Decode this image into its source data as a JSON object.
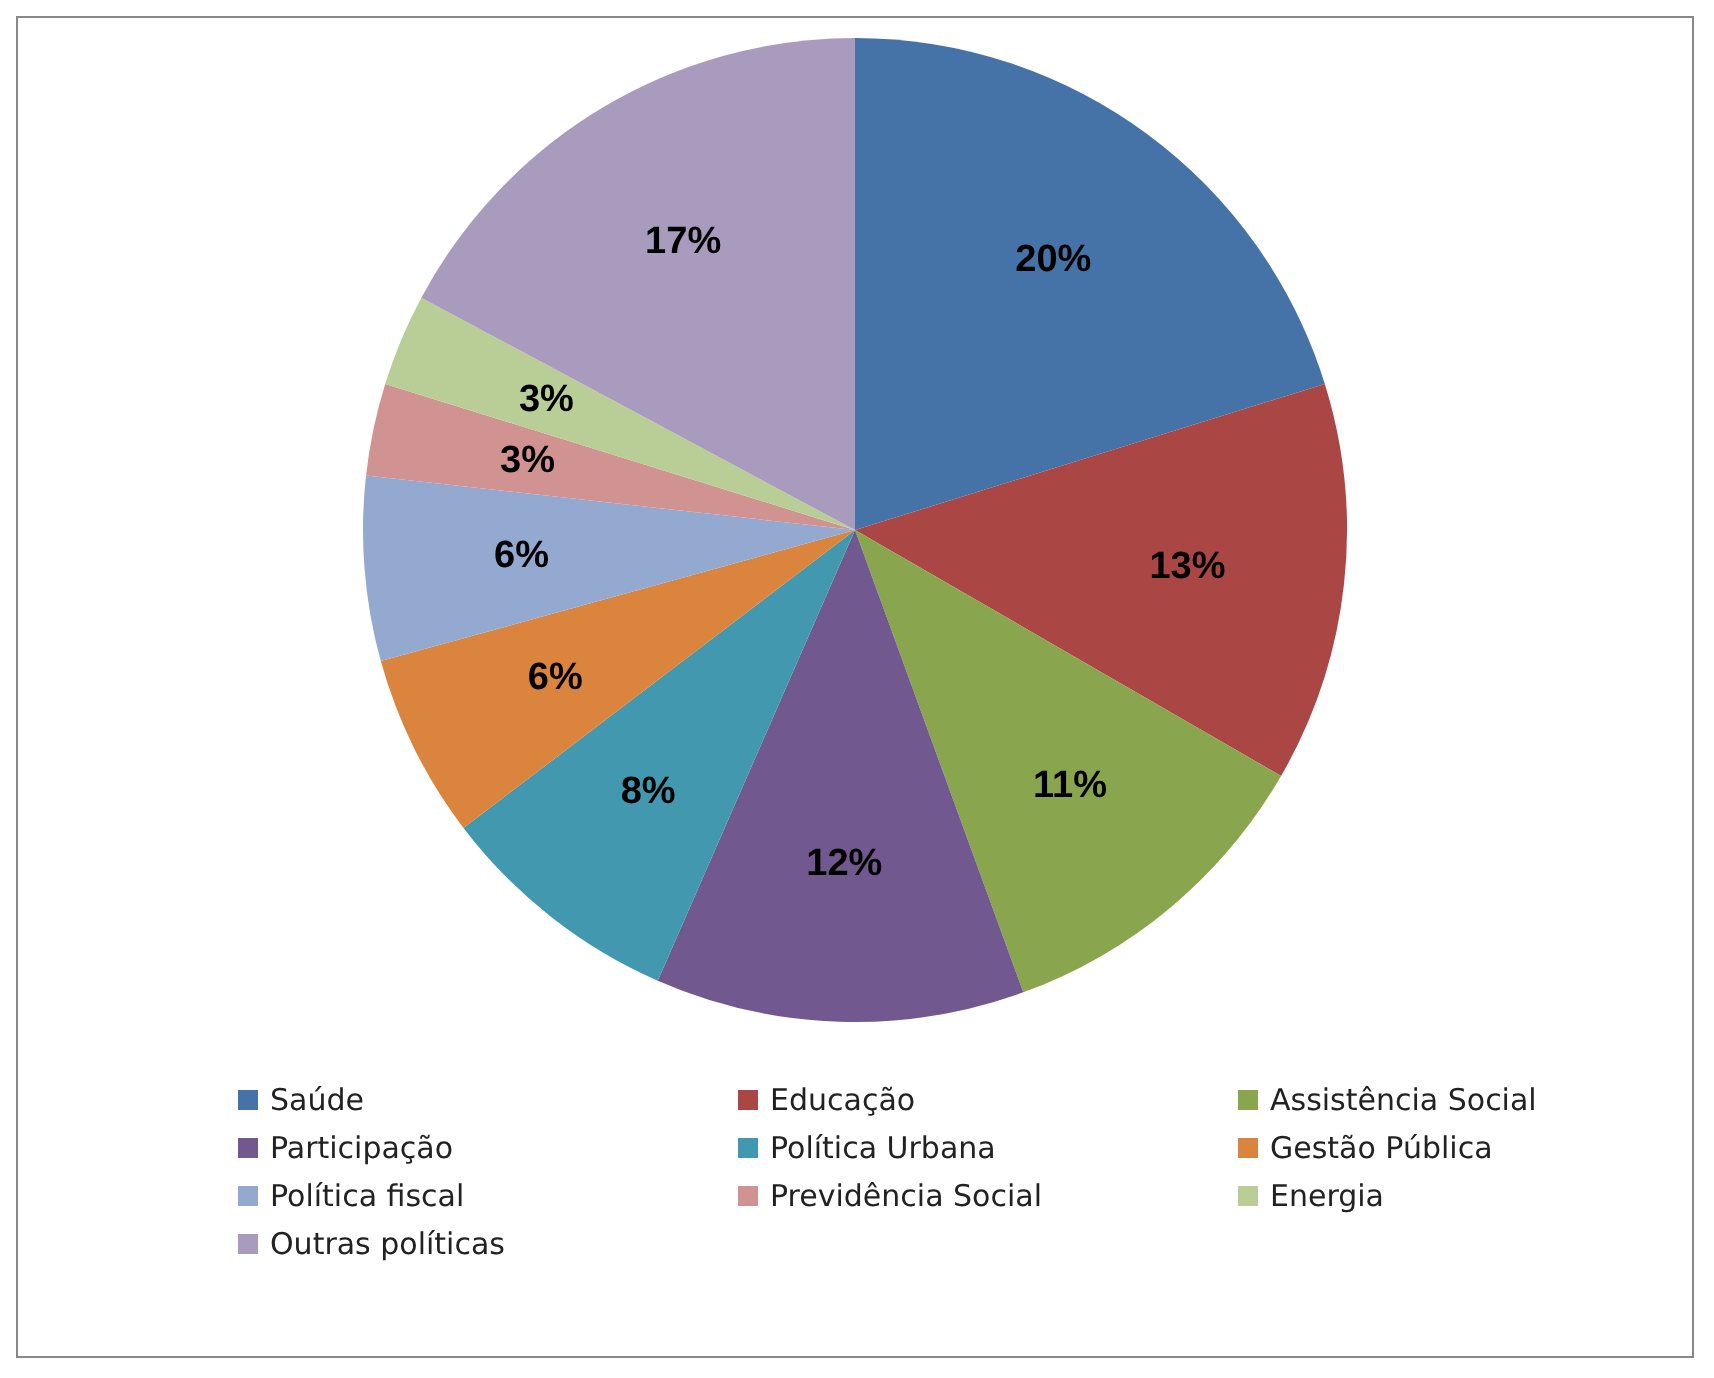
{
  "chart_data": {
    "type": "pie",
    "categories": [
      "Saúde",
      "Educação",
      "Assistência Social",
      "Participação",
      "Política Urbana",
      "Gestão Pública",
      "Política fiscal",
      "Previdência Social",
      "Energia",
      "Outras políticas"
    ],
    "values": [
      20,
      13,
      11,
      12,
      8,
      6,
      6,
      3,
      3,
      17
    ],
    "colors": [
      "#4572a7",
      "#aa4643",
      "#89a54e",
      "#71588f",
      "#4198af",
      "#db843d",
      "#93a9cf",
      "#d19392",
      "#b9cd96",
      "#a99bbd"
    ],
    "value_labels": [
      "20%",
      "13%",
      "11%",
      "12%",
      "8%",
      "6%",
      "6%",
      "3%",
      "3%",
      "17%"
    ],
    "legend": "bottom"
  }
}
